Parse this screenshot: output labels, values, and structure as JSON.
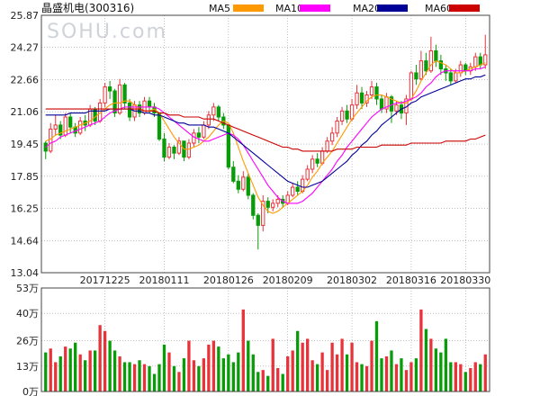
{
  "chart_data": {
    "type": "candlestick",
    "title": "晶盛机电(300316)",
    "watermark": "SOHU.com",
    "price_axis": {
      "ticks": [
        13.04,
        14.64,
        16.25,
        17.85,
        19.45,
        21.06,
        22.66,
        24.27,
        25.87
      ],
      "range": [
        13.04,
        25.87
      ],
      "grid": true
    },
    "volume_axis": {
      "ticks": [
        0,
        13,
        26,
        40,
        53
      ],
      "tick_labels": [
        "0万",
        "13万",
        "26万",
        "40万",
        "53万"
      ],
      "range": [
        0,
        53
      ],
      "unit": "万"
    },
    "date_labels": [
      {
        "label": "20171225",
        "index": 12
      },
      {
        "label": "20180111",
        "index": 24
      },
      {
        "label": "20180126",
        "index": 37
      },
      {
        "label": "20180209",
        "index": 49
      },
      {
        "label": "20180302",
        "index": 62
      },
      {
        "label": "20180316",
        "index": 74
      },
      {
        "label": "20180330",
        "index": 85
      }
    ],
    "legend": [
      {
        "name": "MA5",
        "color": "#ff9900"
      },
      {
        "name": "MA10",
        "color": "#ff00ff"
      },
      {
        "name": "MA20",
        "color": "#000099"
      },
      {
        "name": "MA60",
        "color": "#cc0000"
      }
    ],
    "colors": {
      "up": "#e8333a",
      "down": "#089c08"
    },
    "candles": [
      [
        19.5,
        19.1,
        18.7,
        19.6
      ],
      [
        19.1,
        20.2,
        19.0,
        20.5
      ],
      [
        20.2,
        20.4,
        19.9,
        20.9
      ],
      [
        20.4,
        19.9,
        19.7,
        20.6
      ],
      [
        19.9,
        20.8,
        19.8,
        21.0
      ],
      [
        20.8,
        20.3,
        20.0,
        21.0
      ],
      [
        20.3,
        20.0,
        19.8,
        20.5
      ],
      [
        20.0,
        20.6,
        19.9,
        20.8
      ],
      [
        20.6,
        20.4,
        20.1,
        20.9
      ],
      [
        20.4,
        21.2,
        20.3,
        21.4
      ],
      [
        21.2,
        20.6,
        20.4,
        21.3
      ],
      [
        20.6,
        21.5,
        20.5,
        21.7
      ],
      [
        21.5,
        22.3,
        21.3,
        22.5
      ],
      [
        22.3,
        22.1,
        21.7,
        22.6
      ],
      [
        22.1,
        21.0,
        20.8,
        22.2
      ],
      [
        21.0,
        22.4,
        20.9,
        22.7
      ],
      [
        22.4,
        21.5,
        21.2,
        22.5
      ],
      [
        21.5,
        20.8,
        20.6,
        21.7
      ],
      [
        20.8,
        21.4,
        20.6,
        21.6
      ],
      [
        21.4,
        21.0,
        20.8,
        21.6
      ],
      [
        21.0,
        21.6,
        20.9,
        21.8
      ],
      [
        21.6,
        21.3,
        21.0,
        21.8
      ],
      [
        21.3,
        21.0,
        20.8,
        21.5
      ],
      [
        21.0,
        19.7,
        19.6,
        21.0
      ],
      [
        19.7,
        18.8,
        18.6,
        20.0
      ],
      [
        18.8,
        19.3,
        18.7,
        19.5
      ],
      [
        19.3,
        19.0,
        18.7,
        19.4
      ],
      [
        19.0,
        19.6,
        18.9,
        19.8
      ],
      [
        19.6,
        18.8,
        18.6,
        19.6
      ],
      [
        18.8,
        19.5,
        18.7,
        19.7
      ],
      [
        19.5,
        20.0,
        19.3,
        20.2
      ],
      [
        20.0,
        19.8,
        19.5,
        20.3
      ],
      [
        19.8,
        20.4,
        19.7,
        20.6
      ],
      [
        20.4,
        20.9,
        20.2,
        21.1
      ],
      [
        20.9,
        21.3,
        20.6,
        21.5
      ],
      [
        21.3,
        20.8,
        20.6,
        21.4
      ],
      [
        20.8,
        20.4,
        20.2,
        21.0
      ],
      [
        20.4,
        18.3,
        18.2,
        20.4
      ],
      [
        18.3,
        17.6,
        17.5,
        18.6
      ],
      [
        17.6,
        17.2,
        17.0,
        17.9
      ],
      [
        17.2,
        17.8,
        17.1,
        18.1
      ],
      [
        17.8,
        16.9,
        16.7,
        18.0
      ],
      [
        16.9,
        15.9,
        15.7,
        17.0
      ],
      [
        15.9,
        15.4,
        14.2,
        16.0
      ],
      [
        15.4,
        16.6,
        15.1,
        16.9
      ],
      [
        16.6,
        16.3,
        16.0,
        16.8
      ],
      [
        16.3,
        16.5,
        16.1,
        16.7
      ],
      [
        16.5,
        16.7,
        16.3,
        16.9
      ],
      [
        16.7,
        16.5,
        16.3,
        16.9
      ],
      [
        16.5,
        16.9,
        16.4,
        17.1
      ],
      [
        16.9,
        17.3,
        16.8,
        17.5
      ],
      [
        17.3,
        17.1,
        16.9,
        17.6
      ],
      [
        17.1,
        17.7,
        17.0,
        17.9
      ],
      [
        17.7,
        18.2,
        17.6,
        18.4
      ],
      [
        18.2,
        18.7,
        18.0,
        18.9
      ],
      [
        18.7,
        18.5,
        18.3,
        19.0
      ],
      [
        18.5,
        19.1,
        18.4,
        19.3
      ],
      [
        19.1,
        19.6,
        19.0,
        19.8
      ],
      [
        19.6,
        20.0,
        19.4,
        20.3
      ],
      [
        20.0,
        20.6,
        19.8,
        20.8
      ],
      [
        20.6,
        21.1,
        20.4,
        21.3
      ],
      [
        21.1,
        20.7,
        20.5,
        21.4
      ],
      [
        20.7,
        21.4,
        20.6,
        21.7
      ],
      [
        21.4,
        22.0,
        21.2,
        22.4
      ],
      [
        22.0,
        21.5,
        21.2,
        22.3
      ],
      [
        21.5,
        21.9,
        21.3,
        22.1
      ],
      [
        21.9,
        22.3,
        21.7,
        22.6
      ],
      [
        22.3,
        21.7,
        21.4,
        22.5
      ],
      [
        21.7,
        21.2,
        21.0,
        21.9
      ],
      [
        21.2,
        21.8,
        21.0,
        22.0
      ],
      [
        21.8,
        21.1,
        20.5,
        21.9
      ],
      [
        21.1,
        21.4,
        20.9,
        21.6
      ],
      [
        21.4,
        21.0,
        20.7,
        21.6
      ],
      [
        21.0,
        21.7,
        20.4,
        21.9
      ],
      [
        21.7,
        23.0,
        21.6,
        23.1
      ],
      [
        23.0,
        22.7,
        22.4,
        23.4
      ],
      [
        22.7,
        23.6,
        22.6,
        24.1
      ],
      [
        23.6,
        23.1,
        22.9,
        24.0
      ],
      [
        23.1,
        24.1,
        23.0,
        24.8
      ],
      [
        24.1,
        23.6,
        23.3,
        24.4
      ],
      [
        23.6,
        23.2,
        22.9,
        23.9
      ],
      [
        23.2,
        23.0,
        22.6,
        23.4
      ],
      [
        23.0,
        22.6,
        22.4,
        23.2
      ],
      [
        22.6,
        23.0,
        22.5,
        23.2
      ],
      [
        23.0,
        23.4,
        22.8,
        23.6
      ],
      [
        23.4,
        23.1,
        22.9,
        23.5
      ],
      [
        23.1,
        23.3,
        22.9,
        23.5
      ],
      [
        23.3,
        23.8,
        23.1,
        24.0
      ],
      [
        23.8,
        23.4,
        23.2,
        24.0
      ],
      [
        23.4,
        23.9,
        23.2,
        24.9
      ]
    ],
    "volumes": [
      20,
      22,
      15,
      18,
      23,
      22,
      25,
      19,
      16,
      21,
      21,
      34,
      31,
      26,
      21,
      18,
      15,
      15,
      14,
      16,
      14,
      13,
      9,
      14,
      24,
      20,
      13,
      10,
      17,
      26,
      16,
      13,
      17,
      24,
      26,
      23,
      17,
      19,
      15,
      20,
      42,
      26,
      19,
      10,
      11,
      8,
      27,
      12,
      9,
      18,
      21,
      31,
      25,
      27,
      16,
      14,
      20,
      11,
      25,
      19,
      27,
      19,
      25,
      15,
      14,
      13,
      26,
      36,
      17,
      18,
      21,
      14,
      17,
      11,
      15,
      17,
      42,
      32,
      27,
      22,
      20,
      27,
      15,
      15,
      14,
      10,
      12,
      15,
      14,
      19
    ],
    "ma_series": {
      "MA5": [
        19.6,
        19.7,
        19.9,
        20.0,
        20.1,
        20.2,
        20.3,
        20.4,
        20.5,
        20.6,
        20.8,
        21.0,
        21.2,
        21.4,
        21.5,
        21.5,
        21.6,
        21.6,
        21.4,
        21.2,
        21.1,
        21.1,
        21.2,
        21.0,
        20.6,
        20.2,
        19.8,
        19.5,
        19.2,
        19.2,
        19.3,
        19.4,
        19.6,
        19.8,
        20.1,
        20.4,
        20.6,
        20.5,
        20.0,
        19.3,
        18.6,
        18.0,
        17.4,
        16.8,
        16.4,
        16.1,
        16.0,
        16.1,
        16.3,
        16.5,
        16.7,
        16.9,
        17.1,
        17.4,
        17.8,
        18.1,
        18.5,
        18.8,
        19.1,
        19.5,
        19.9,
        20.3,
        20.7,
        21.0,
        21.3,
        21.6,
        21.8,
        21.9,
        21.9,
        21.8,
        21.7,
        21.6,
        21.5,
        21.5,
        21.7,
        22.1,
        22.6,
        23.0,
        23.4,
        23.6,
        23.5,
        23.4,
        23.2,
        23.0,
        23.0,
        23.1,
        23.2,
        23.3,
        23.4,
        23.5
      ],
      "MA10": [
        19.3,
        19.5,
        19.6,
        19.8,
        19.9,
        20.0,
        20.1,
        20.2,
        20.3,
        20.4,
        20.5,
        20.6,
        20.8,
        21.0,
        21.1,
        21.2,
        21.3,
        21.3,
        21.3,
        21.3,
        21.3,
        21.3,
        21.3,
        21.2,
        21.0,
        20.8,
        20.6,
        20.4,
        20.2,
        20.0,
        19.8,
        19.7,
        19.6,
        19.6,
        19.7,
        19.8,
        19.9,
        20.0,
        19.9,
        19.7,
        19.4,
        19.0,
        18.6,
        18.2,
        17.8,
        17.4,
        17.1,
        16.8,
        16.6,
        16.5,
        16.5,
        16.5,
        16.6,
        16.8,
        17.0,
        17.3,
        17.6,
        17.9,
        18.2,
        18.6,
        18.9,
        19.3,
        19.6,
        19.9,
        20.2,
        20.5,
        20.8,
        21.0,
        21.2,
        21.3,
        21.4,
        21.5,
        21.5,
        21.6,
        21.7,
        21.8,
        22.0,
        22.3,
        22.5,
        22.8,
        23.0,
        23.1,
        23.1,
        23.1,
        23.1,
        23.1,
        23.1,
        23.2,
        23.2,
        23.3
      ],
      "MA20": [
        20.9,
        20.9,
        20.9,
        20.9,
        20.9,
        21.0,
        21.0,
        21.0,
        21.0,
        21.1,
        21.1,
        21.1,
        21.1,
        21.2,
        21.2,
        21.2,
        21.2,
        21.2,
        21.1,
        21.1,
        21.0,
        21.0,
        20.9,
        20.9,
        20.8,
        20.7,
        20.6,
        20.5,
        20.5,
        20.4,
        20.4,
        20.4,
        20.4,
        20.3,
        20.3,
        20.2,
        20.1,
        20.0,
        19.8,
        19.6,
        19.4,
        19.2,
        19.0,
        18.8,
        18.6,
        18.4,
        18.2,
        18.0,
        17.8,
        17.6,
        17.5,
        17.4,
        17.3,
        17.3,
        17.4,
        17.5,
        17.6,
        17.8,
        18.0,
        18.2,
        18.4,
        18.6,
        18.9,
        19.1,
        19.4,
        19.6,
        19.9,
        20.1,
        20.4,
        20.6,
        20.8,
        21.0,
        21.2,
        21.3,
        21.5,
        21.6,
        21.8,
        21.9,
        22.0,
        22.1,
        22.2,
        22.3,
        22.4,
        22.5,
        22.6,
        22.7,
        22.7,
        22.8,
        22.8,
        22.9
      ],
      "MA60": [
        21.2,
        21.2,
        21.2,
        21.2,
        21.2,
        21.2,
        21.2,
        21.2,
        21.2,
        21.2,
        21.2,
        21.2,
        21.2,
        21.2,
        21.2,
        21.2,
        21.2,
        21.2,
        21.2,
        21.2,
        21.1,
        21.1,
        21.1,
        21.0,
        21.0,
        20.9,
        20.9,
        20.9,
        20.8,
        20.8,
        20.8,
        20.8,
        20.7,
        20.7,
        20.7,
        20.6,
        20.5,
        20.4,
        20.3,
        20.2,
        20.1,
        20.0,
        19.9,
        19.8,
        19.7,
        19.6,
        19.5,
        19.4,
        19.3,
        19.3,
        19.2,
        19.2,
        19.1,
        19.1,
        19.1,
        19.1,
        19.1,
        19.1,
        19.1,
        19.2,
        19.2,
        19.2,
        19.2,
        19.3,
        19.3,
        19.3,
        19.3,
        19.3,
        19.4,
        19.4,
        19.4,
        19.4,
        19.4,
        19.4,
        19.5,
        19.5,
        19.5,
        19.5,
        19.5,
        19.5,
        19.5,
        19.6,
        19.6,
        19.6,
        19.6,
        19.6,
        19.7,
        19.7,
        19.8,
        19.9
      ]
    }
  }
}
